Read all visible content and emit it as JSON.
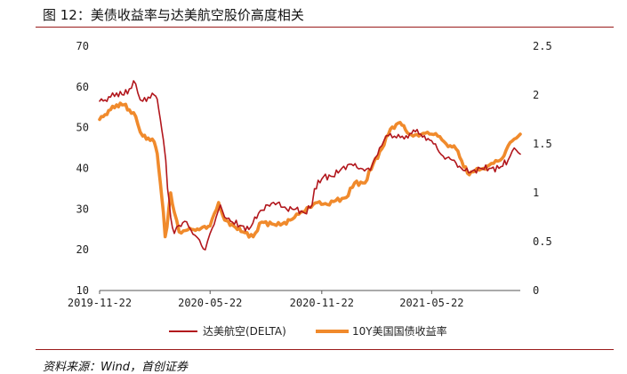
{
  "figure": {
    "title": "图 12：美债收益率与达美航空股价高度相关",
    "source": "资料来源：Wind，首创证券"
  },
  "chart_data": {
    "type": "line",
    "x_type": "date",
    "xlim": [
      "2019-11-22",
      "2021-10-15"
    ],
    "x_ticks": [
      "2019-11-22",
      "2020-05-22",
      "2020-11-22",
      "2021-05-22"
    ],
    "y_left": {
      "lim": [
        10,
        70
      ],
      "ticks": [
        "10",
        "20",
        "30",
        "40",
        "50",
        "60",
        "70"
      ]
    },
    "y_right": {
      "lim": [
        0,
        2.5
      ],
      "ticks": [
        "0",
        "0.5",
        "1",
        "1.5",
        "2",
        "2.5"
      ]
    },
    "legend_position": "bottom-center",
    "grid": false,
    "colors": {
      "delta": "#b2171d",
      "treasury": "#f08a2c",
      "rule": "#9a1a1a"
    },
    "series": [
      {
        "name": "达美航空(DELTA)",
        "axis": "left",
        "x": [
          "2019-11-22",
          "2019-12-01",
          "2019-12-10",
          "2019-12-20",
          "2020-01-01",
          "2020-01-10",
          "2020-01-17",
          "2020-01-24",
          "2020-02-01",
          "2020-02-10",
          "2020-02-20",
          "2020-02-25",
          "2020-03-01",
          "2020-03-06",
          "2020-03-10",
          "2020-03-13",
          "2020-03-18",
          "2020-03-24",
          "2020-04-01",
          "2020-04-10",
          "2020-04-20",
          "2020-05-01",
          "2020-05-08",
          "2020-05-14",
          "2020-05-22",
          "2020-06-01",
          "2020-06-08",
          "2020-06-15",
          "2020-06-25",
          "2020-07-10",
          "2020-07-25",
          "2020-08-10",
          "2020-08-25",
          "2020-09-10",
          "2020-09-25",
          "2020-10-10",
          "2020-10-25",
          "2020-11-06",
          "2020-11-10",
          "2020-11-25",
          "2020-12-10",
          "2020-12-25",
          "2021-01-10",
          "2021-01-25",
          "2021-02-10",
          "2021-02-25",
          "2021-03-05",
          "2021-03-15",
          "2021-03-25",
          "2021-04-10",
          "2021-04-25",
          "2021-05-10",
          "2021-05-25",
          "2021-06-10",
          "2021-06-25",
          "2021-07-10",
          "2021-07-25",
          "2021-08-10",
          "2021-08-25",
          "2021-09-10",
          "2021-09-25",
          "2021-10-05",
          "2021-10-15"
        ],
        "values": [
          56.5,
          56.8,
          57.5,
          58.5,
          58.0,
          59.5,
          61.5,
          58.5,
          56.5,
          57.5,
          58.0,
          57.0,
          52.0,
          47.0,
          42.0,
          35.0,
          28.0,
          24.0,
          26.0,
          27.0,
          25.0,
          23.0,
          21.0,
          20.0,
          24.0,
          28.0,
          31.0,
          28.0,
          27.0,
          26.0,
          25.0,
          29.0,
          31.0,
          31.5,
          30.0,
          30.0,
          29.0,
          31.0,
          35.0,
          38.0,
          38.0,
          40.0,
          41.0,
          40.0,
          39.5,
          45.0,
          47.0,
          48.5,
          47.5,
          48.0,
          49.0,
          48.0,
          46.0,
          43.0,
          42.0,
          40.0,
          39.0,
          40.0,
          40.0,
          40.0,
          42.0,
          45.0,
          43.5
        ]
      },
      {
        "name": "10Y美国国债收益率",
        "axis": "right",
        "x": [
          "2019-11-22",
          "2019-12-01",
          "2019-12-10",
          "2019-12-20",
          "2020-01-01",
          "2020-01-10",
          "2020-01-17",
          "2020-01-24",
          "2020-02-01",
          "2020-02-10",
          "2020-02-20",
          "2020-02-25",
          "2020-03-01",
          "2020-03-06",
          "2020-03-09",
          "2020-03-12",
          "2020-03-18",
          "2020-03-24",
          "2020-04-01",
          "2020-04-15",
          "2020-05-01",
          "2020-05-22",
          "2020-06-05",
          "2020-06-15",
          "2020-06-30",
          "2020-07-15",
          "2020-08-01",
          "2020-08-15",
          "2020-09-01",
          "2020-09-15",
          "2020-10-01",
          "2020-10-15",
          "2020-11-01",
          "2020-11-15",
          "2020-12-01",
          "2020-12-15",
          "2021-01-01",
          "2021-01-15",
          "2021-02-01",
          "2021-02-15",
          "2021-03-01",
          "2021-03-15",
          "2021-03-31",
          "2021-04-15",
          "2021-05-01",
          "2021-05-15",
          "2021-06-01",
          "2021-06-15",
          "2021-07-01",
          "2021-07-20",
          "2021-08-01",
          "2021-08-15",
          "2021-09-01",
          "2021-09-15",
          "2021-09-25",
          "2021-10-05",
          "2021-10-15"
        ],
        "values": [
          1.75,
          1.8,
          1.85,
          1.9,
          1.9,
          1.85,
          1.82,
          1.7,
          1.58,
          1.56,
          1.52,
          1.4,
          1.1,
          0.8,
          0.55,
          0.65,
          1.0,
          0.8,
          0.6,
          0.62,
          0.63,
          0.66,
          0.9,
          0.72,
          0.66,
          0.6,
          0.55,
          0.7,
          0.68,
          0.67,
          0.72,
          0.78,
          0.85,
          0.9,
          0.88,
          0.92,
          0.95,
          1.1,
          1.1,
          1.3,
          1.45,
          1.65,
          1.72,
          1.6,
          1.58,
          1.62,
          1.58,
          1.5,
          1.45,
          1.2,
          1.22,
          1.25,
          1.3,
          1.35,
          1.48,
          1.55,
          1.6
        ]
      }
    ]
  }
}
